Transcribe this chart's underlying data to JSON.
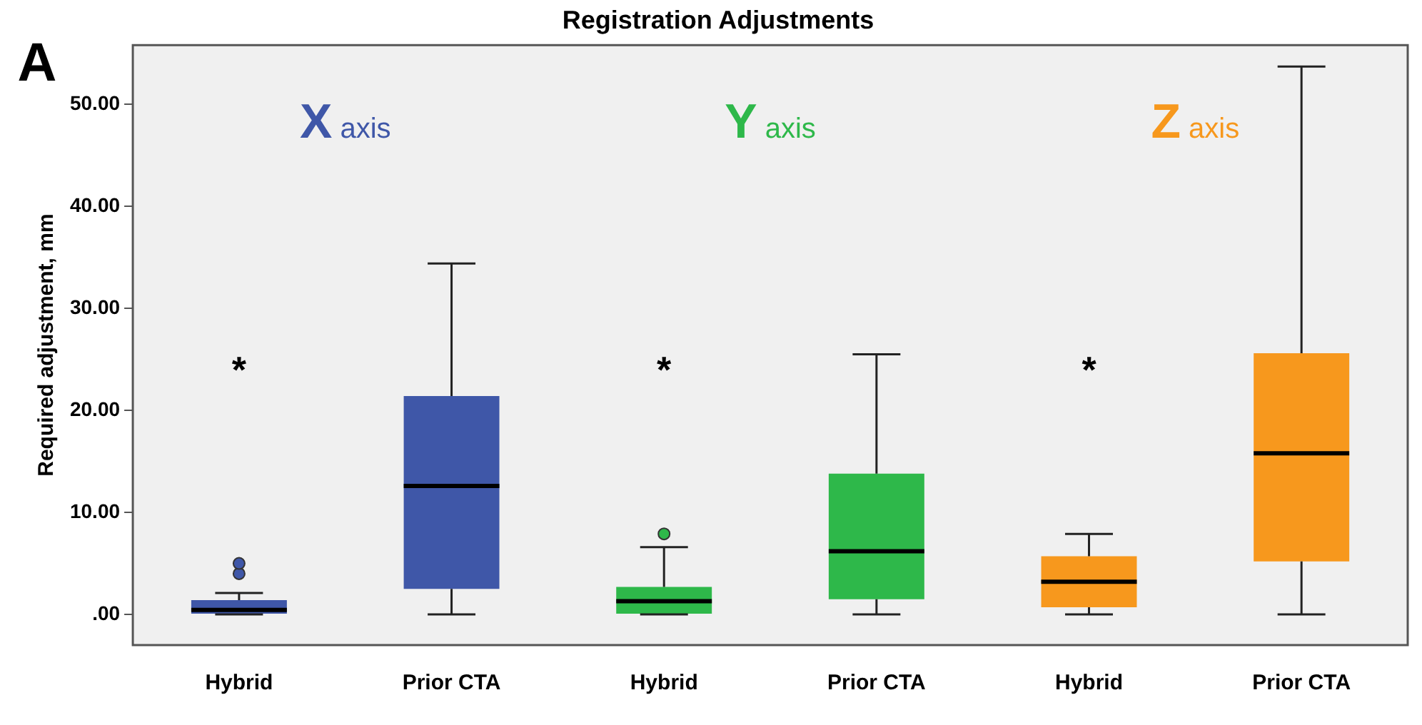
{
  "chart_data": {
    "type": "box",
    "title": "Registration Adjustments",
    "ylabel": "Required adjustment, mm",
    "categories": [
      "Hybrid",
      "Prior CTA",
      "Hybrid",
      "Prior CTA",
      "Hybrid",
      "Prior CTA"
    ],
    "ylim": [
      -3,
      55.8
    ],
    "yticks": [
      {
        "value": 0,
        "label": ".00"
      },
      {
        "value": 10,
        "label": "10.00"
      },
      {
        "value": 20,
        "label": "20.00"
      },
      {
        "value": 30,
        "label": "30.00"
      },
      {
        "value": 40,
        "label": "40.00"
      },
      {
        "value": 50,
        "label": "50.00"
      }
    ],
    "grid": false,
    "legend": false,
    "series": [
      {
        "name": "X axis",
        "color": "#3f57a8",
        "boxes": [
          {
            "low": 0,
            "q1": 0,
            "median": 0.45,
            "q3": 1.4,
            "high": 2.1,
            "outliers": [
              4.0,
              5.0
            ]
          },
          {
            "low": 0,
            "q1": 2.5,
            "median": 12.6,
            "q3": 21.4,
            "high": 34.4
          },
          null,
          null,
          null,
          null
        ]
      },
      {
        "name": "Y axis",
        "color": "#2eb84a",
        "boxes": [
          null,
          null,
          {
            "low": 0,
            "q1": 0,
            "median": 1.3,
            "q3": 2.7,
            "high": 6.6,
            "outliers": [
              7.9
            ]
          },
          {
            "low": 0,
            "q1": 1.5,
            "median": 6.2,
            "q3": 13.8,
            "high": 25.5
          },
          null,
          null
        ]
      },
      {
        "name": "Z axis",
        "color": "#f7981d",
        "boxes": [
          null,
          null,
          null,
          null,
          {
            "low": 0,
            "q1": 0.7,
            "median": 3.2,
            "q3": 5.7,
            "high": 7.9
          },
          {
            "low": 0,
            "q1": 5.2,
            "median": 15.8,
            "q3": 25.6,
            "high": 53.7
          }
        ]
      }
    ],
    "annotations": [
      "A",
      "*",
      "*",
      "*"
    ]
  }
}
